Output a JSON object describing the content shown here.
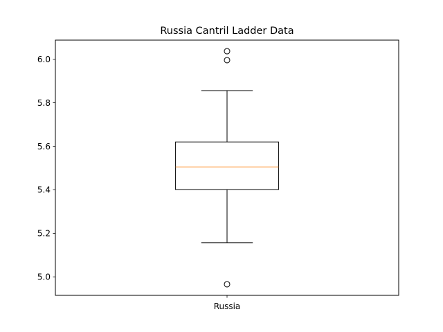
{
  "chart_data": {
    "type": "boxplot",
    "title": "Russia Cantril Ladder Data",
    "xlabel": "",
    "ylabel": "",
    "categories": [
      "Russia"
    ],
    "boxes": [
      {
        "category": "Russia",
        "whisker_low": 5.157,
        "q1": 5.401,
        "median": 5.505,
        "q3": 5.62,
        "whisker_high": 5.856,
        "outliers": [
          6.037,
          5.996,
          4.966
        ]
      }
    ],
    "ylim": [
      4.915,
      6.088
    ],
    "yticks": [
      5.0,
      5.2,
      5.4,
      5.6,
      5.8,
      6.0
    ],
    "ytick_labels": [
      "5.0",
      "5.2",
      "5.4",
      "5.6",
      "5.8",
      "6.0"
    ],
    "grid": false,
    "colors": {
      "box": "#000000",
      "median": "#ff7f0e",
      "whisker": "#000000",
      "outlier": "#000000"
    }
  }
}
